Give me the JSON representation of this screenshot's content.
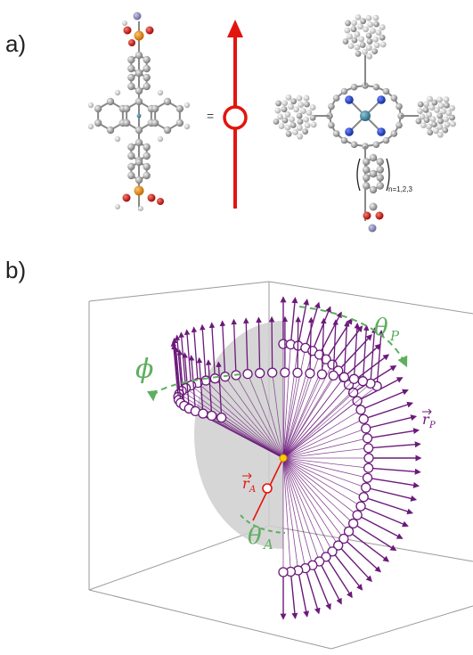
{
  "panel_a": {
    "label": "a)",
    "equals": "=",
    "subscript": "n=1,2,3"
  },
  "panel_b": {
    "label": "b)",
    "phi_label": "ϕ",
    "theta_p_label": "θ",
    "theta_p_sub": "P",
    "r_p_label": "r",
    "r_p_sub": "P",
    "r_a_label": "r",
    "r_a_sub": "A",
    "theta_a_label": "θ",
    "theta_a_sub": "A"
  },
  "colors": {
    "dipole_red": "#e3140f",
    "arrow_purple": "#6b1a7a",
    "angle_green": "#5fae5f",
    "sphere_gray": "#cfcfcf",
    "box_line": "#9a9a9a"
  }
}
